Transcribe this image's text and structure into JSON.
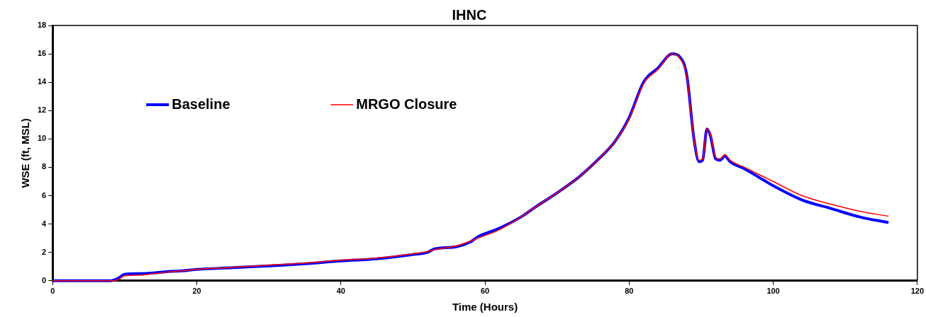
{
  "chart_data": {
    "type": "line",
    "title": "IHNC",
    "xlabel": "Time (Hours)",
    "ylabel": "WSE (ft, MSL)",
    "x": [
      0,
      8,
      9,
      10,
      12,
      14,
      16,
      18,
      20,
      25,
      30,
      35,
      40,
      45,
      50,
      52,
      53,
      56,
      58,
      59,
      62,
      65,
      67,
      70,
      73,
      76,
      78,
      80,
      82,
      84,
      86,
      87,
      88,
      89,
      89.7,
      90.2,
      90.8,
      91.3,
      92,
      92.6,
      93.3,
      94,
      96,
      98,
      100,
      104,
      108,
      112,
      116
    ],
    "series": [
      {
        "name": "Baseline",
        "color": "#0000ff",
        "values": [
          0,
          0,
          0.15,
          0.45,
          0.5,
          0.55,
          0.65,
          0.7,
          0.8,
          0.92,
          1.05,
          1.2,
          1.4,
          1.55,
          1.85,
          2.0,
          2.25,
          2.4,
          2.75,
          3.1,
          3.7,
          4.5,
          5.2,
          6.2,
          7.3,
          8.7,
          9.8,
          11.5,
          14.0,
          15.0,
          16.0,
          15.8,
          14.5,
          10,
          8.4,
          8.5,
          10.7,
          10.2,
          8.6,
          8.5,
          8.8,
          8.4,
          7.9,
          7.3,
          6.7,
          5.7,
          5.1,
          4.5,
          4.1
        ]
      },
      {
        "name": "MRGO Closure",
        "color": "#ff0000",
        "values": [
          0,
          0,
          0.05,
          0.35,
          0.4,
          0.5,
          0.62,
          0.7,
          0.8,
          0.95,
          1.1,
          1.25,
          1.45,
          1.6,
          1.9,
          2.05,
          2.2,
          2.45,
          2.8,
          3.0,
          3.6,
          4.5,
          5.2,
          6.2,
          7.3,
          8.7,
          9.8,
          11.4,
          13.9,
          14.9,
          16.0,
          15.7,
          14.4,
          10,
          8.5,
          8.6,
          10.7,
          10.3,
          8.7,
          8.6,
          8.9,
          8.5,
          8.0,
          7.5,
          7.0,
          6.0,
          5.4,
          4.9,
          4.55
        ]
      }
    ],
    "xlim": [
      0,
      120
    ],
    "xticks": [
      0,
      20,
      40,
      60,
      80,
      100,
      120
    ],
    "ylim": [
      0,
      18
    ],
    "yticks": [
      0,
      2,
      4,
      6,
      8,
      10,
      12,
      14,
      16,
      18
    ],
    "grid": false,
    "legend": "top left",
    "marker": "none",
    "line_style": "solid"
  }
}
